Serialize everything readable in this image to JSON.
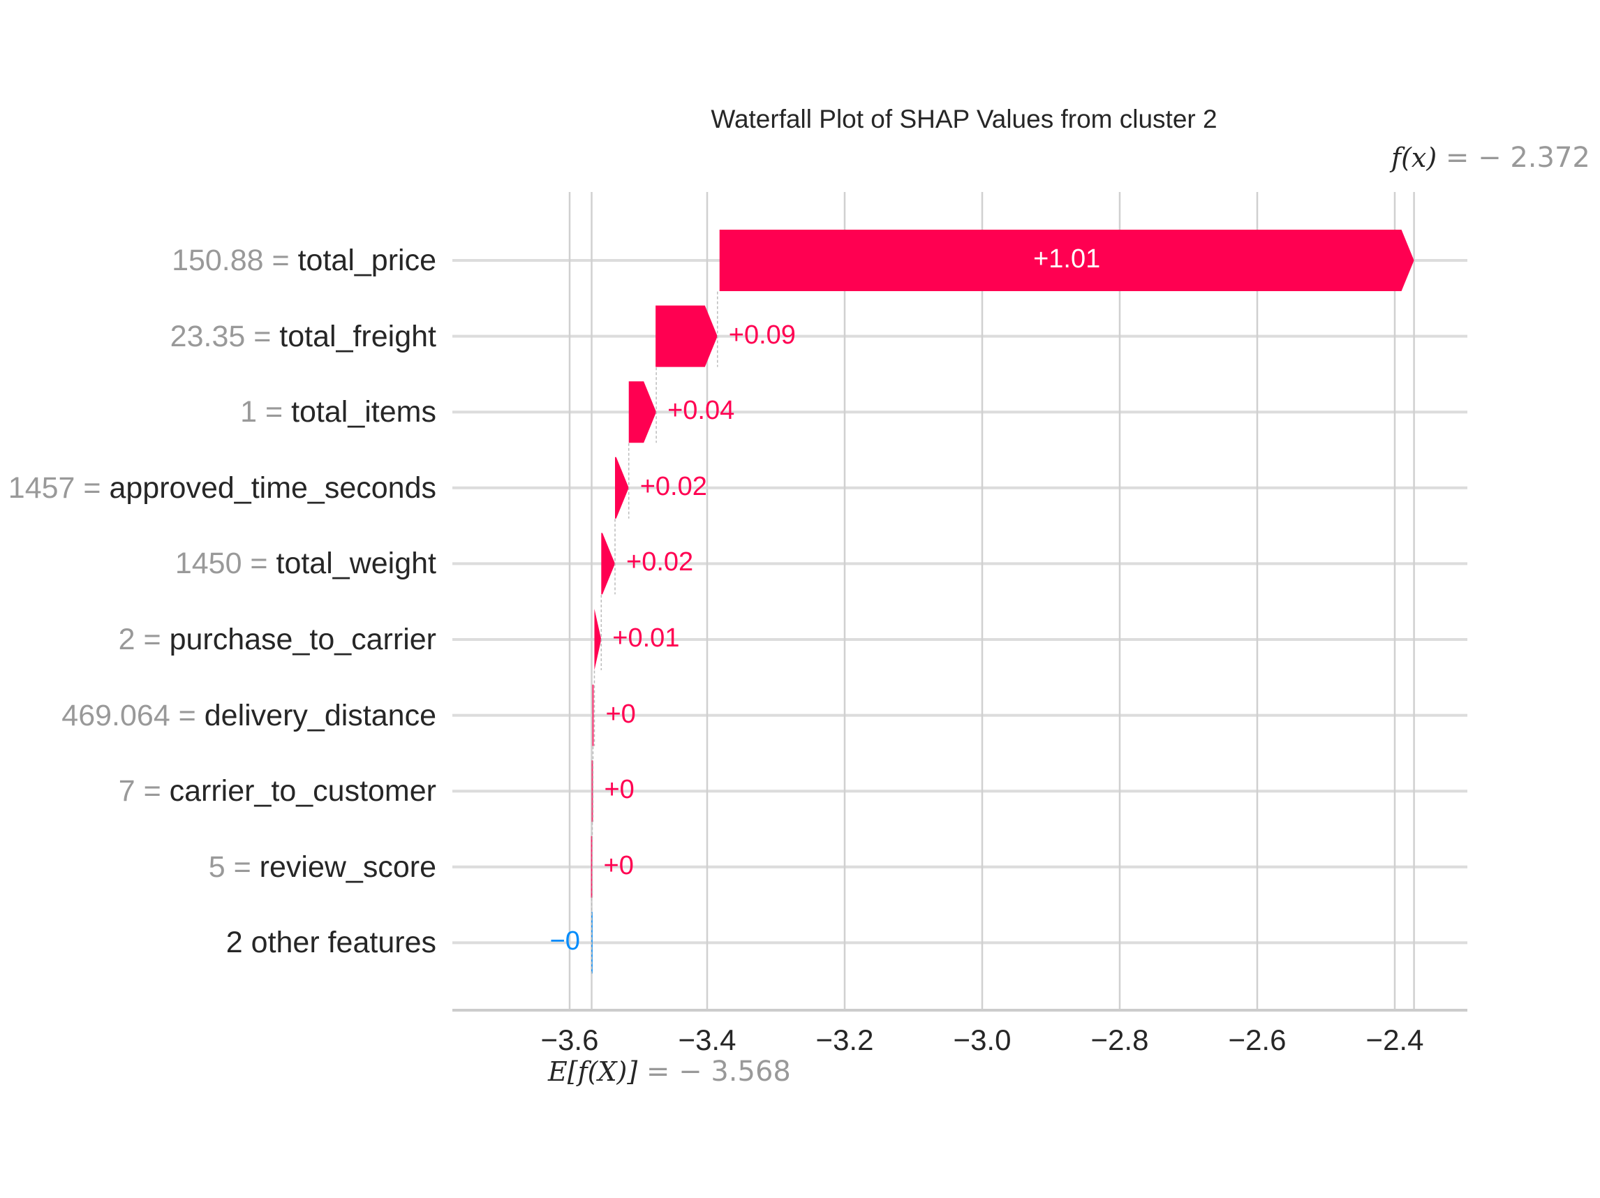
{
  "chart_data": {
    "type": "waterfall",
    "title": "Waterfall Plot of SHAP Values from cluster 2",
    "xlabel": "",
    "ylabel": "",
    "base_value": -3.568,
    "base_label": {
      "lhs": "E[f(X)]",
      "eq": " = ",
      "rhs": "− 3.568"
    },
    "output_value": -2.372,
    "output_label": {
      "lhs": "f(x)",
      "eq": " = ",
      "rhs": "− 2.372"
    },
    "xlim": [
      -3.76,
      -2.3
    ],
    "x_ticks": [
      -3.6,
      -3.4,
      -3.2,
      -3.0,
      -2.8,
      -2.6,
      -2.4
    ],
    "x_tick_labels": [
      "−3.6",
      "−3.4",
      "−3.2",
      "−3.0",
      "−2.8",
      "−2.6",
      "−2.4"
    ],
    "grid": true,
    "features": [
      {
        "value": "150.88",
        "name": "total_price",
        "shap": 1.01,
        "label": "+1.01",
        "start": -3.382
      },
      {
        "value": "23.35",
        "name": "total_freight",
        "shap": 0.09,
        "label": "+0.09",
        "start": -3.475
      },
      {
        "value": "1",
        "name": "total_items",
        "shap": 0.04,
        "label": "+0.04",
        "start": -3.514
      },
      {
        "value": "1457",
        "name": "approved_time_seconds",
        "shap": 0.02,
        "label": "+0.02",
        "start": -3.534
      },
      {
        "value": "1450",
        "name": "total_weight",
        "shap": 0.02,
        "label": "+0.02",
        "start": -3.554
      },
      {
        "value": "2",
        "name": "purchase_to_carrier",
        "shap": 0.01,
        "label": "+0.01",
        "start": -3.564
      },
      {
        "value": "469.064",
        "name": "delivery_distance",
        "shap": 0.002,
        "label": "+0",
        "start": -3.566
      },
      {
        "value": "7",
        "name": "carrier_to_customer",
        "shap": 0.001,
        "label": "+0",
        "start": -3.567
      },
      {
        "value": "5",
        "name": "review_score",
        "shap": 0.001,
        "label": "+0",
        "start": -3.568
      },
      {
        "value": "",
        "name": "2 other features",
        "shap": -0.0005,
        "label": "−0",
        "start": -3.5675
      }
    ],
    "colors": {
      "positive": "#ff0051",
      "negative": "#008bfb",
      "grid": "#d0d0d0",
      "text": "#262626",
      "muted": "#999999"
    }
  }
}
